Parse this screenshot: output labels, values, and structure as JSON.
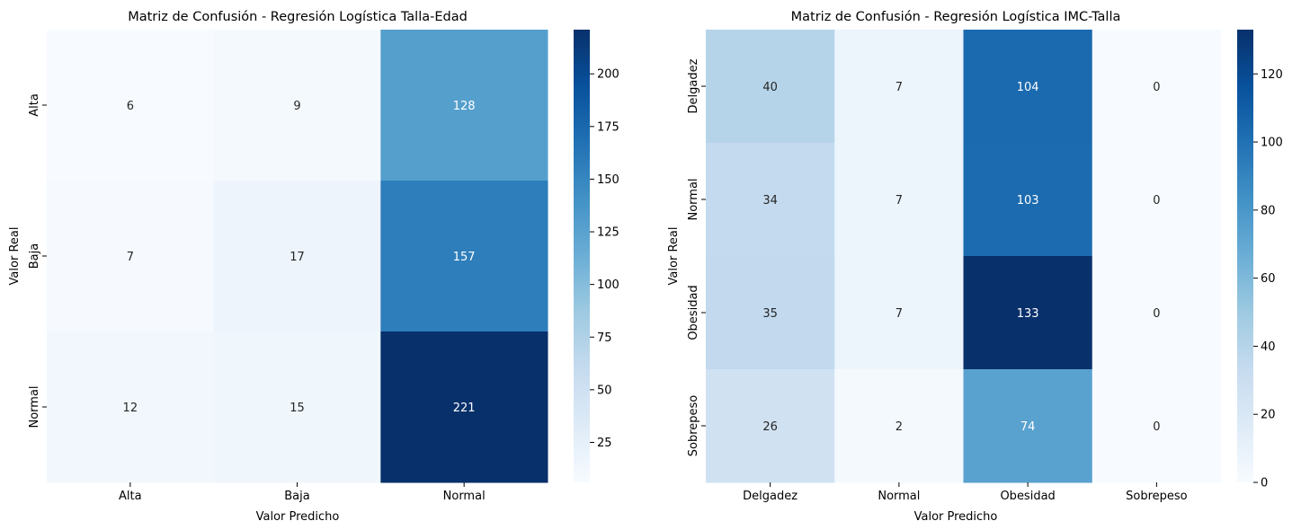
{
  "chart_data": [
    {
      "type": "heatmap",
      "title": "Matriz de Confusión - Regresión Logística Talla-Edad",
      "xlabel": "Valor Predicho",
      "ylabel": "Valor Real",
      "x_categories": [
        "Alta",
        "Baja",
        "Normal"
      ],
      "y_categories": [
        "Alta",
        "Baja",
        "Normal"
      ],
      "values": [
        [
          6,
          9,
          128
        ],
        [
          7,
          17,
          157
        ],
        [
          12,
          15,
          221
        ]
      ],
      "colormap": "Blues",
      "vmin": 6,
      "vmax": 221,
      "colorbar_ticks": [
        25,
        50,
        75,
        100,
        125,
        150,
        175,
        200
      ]
    },
    {
      "type": "heatmap",
      "title": "Matriz de Confusión - Regresión Logística IMC-Talla",
      "xlabel": "Valor Predicho",
      "ylabel": "Valor Real",
      "x_categories": [
        "Delgadez",
        "Normal",
        "Obesidad",
        "Sobrepeso"
      ],
      "y_categories": [
        "Delgadez",
        "Normal",
        "Obesidad",
        "Sobrepeso"
      ],
      "values": [
        [
          40,
          7,
          104,
          0
        ],
        [
          34,
          7,
          103,
          0
        ],
        [
          35,
          7,
          133,
          0
        ],
        [
          26,
          2,
          74,
          0
        ]
      ],
      "colormap": "Blues",
      "vmin": 0,
      "vmax": 133,
      "colorbar_ticks": [
        0,
        20,
        40,
        60,
        80,
        100,
        120
      ]
    }
  ]
}
